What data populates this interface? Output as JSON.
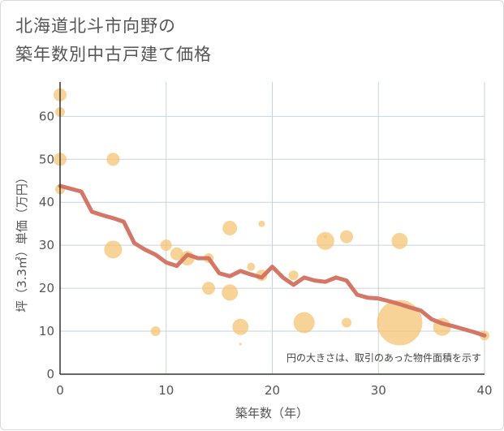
{
  "title_lines": [
    "北海道北斗市向野の",
    "築年数別中古戸建て価格"
  ],
  "chart_data": {
    "type": "scatter",
    "title": "北海道北斗市向野の築年数別中古戸建て価格",
    "xlabel": "築年数（年）",
    "ylabel": "坪（3.3㎡）単価（万円）",
    "xlim": [
      0,
      40
    ],
    "ylim": [
      0,
      68
    ],
    "xticks": [
      0,
      10,
      20,
      30,
      40
    ],
    "yticks": [
      0,
      10,
      20,
      30,
      40,
      50,
      60
    ],
    "grid": true,
    "annotation": "円の大きさは、取引のあった物件面積を示す",
    "bubble_color": "#f5c16c",
    "line_color": "#d2705f",
    "scatter_points": [
      {
        "x": 0,
        "y": 65,
        "size": 8
      },
      {
        "x": 0,
        "y": 61,
        "size": 6
      },
      {
        "x": 0,
        "y": 50,
        "size": 8
      },
      {
        "x": 0,
        "y": 43,
        "size": 6
      },
      {
        "x": 5,
        "y": 50,
        "size": 8
      },
      {
        "x": 5,
        "y": 29,
        "size": 11
      },
      {
        "x": 10,
        "y": 30,
        "size": 7
      },
      {
        "x": 11,
        "y": 28,
        "size": 8
      },
      {
        "x": 12,
        "y": 27,
        "size": 9
      },
      {
        "x": 9,
        "y": 10,
        "size": 6
      },
      {
        "x": 14,
        "y": 27,
        "size": 6
      },
      {
        "x": 14,
        "y": 20,
        "size": 8
      },
      {
        "x": 16,
        "y": 34,
        "size": 9
      },
      {
        "x": 16,
        "y": 19,
        "size": 10
      },
      {
        "x": 17,
        "y": 11,
        "size": 10
      },
      {
        "x": 17,
        "y": 7,
        "size": 1.5
      },
      {
        "x": 18,
        "y": 25,
        "size": 5
      },
      {
        "x": 19,
        "y": 35,
        "size": 4
      },
      {
        "x": 19,
        "y": 23,
        "size": 7
      },
      {
        "x": 22,
        "y": 23,
        "size": 6
      },
      {
        "x": 23,
        "y": 12,
        "size": 13
      },
      {
        "x": 25,
        "y": 31,
        "size": 11
      },
      {
        "x": 25,
        "y": 32,
        "size": 2
      },
      {
        "x": 27,
        "y": 32,
        "size": 8
      },
      {
        "x": 27,
        "y": 12,
        "size": 6
      },
      {
        "x": 32,
        "y": 31,
        "size": 10
      },
      {
        "x": 32,
        "y": 12,
        "size": 28
      },
      {
        "x": 36,
        "y": 11,
        "size": 11
      },
      {
        "x": 40,
        "y": 9,
        "size": 6
      }
    ],
    "trend_line": {
      "x": [
        0,
        2,
        3,
        4,
        5,
        6,
        7,
        8,
        9,
        10,
        11,
        12,
        13,
        14,
        15,
        16,
        17,
        18,
        19,
        20,
        21,
        22,
        23,
        24,
        25,
        26,
        27,
        28,
        29,
        30,
        31,
        32,
        33,
        34,
        35,
        36,
        37,
        38,
        39,
        40
      ],
      "y": [
        43.8,
        42.5,
        37.8,
        37.0,
        36.3,
        35.5,
        30.5,
        29.0,
        27.8,
        26.0,
        25.2,
        27.8,
        27.0,
        27.0,
        23.5,
        22.8,
        24.0,
        23.2,
        22.5,
        25.0,
        22.5,
        20.8,
        22.5,
        21.8,
        21.5,
        22.5,
        21.8,
        18.5,
        17.8,
        17.6,
        17.0,
        16.3,
        15.5,
        14.8,
        12.8,
        11.8,
        11.2,
        10.5,
        9.8,
        9.0
      ]
    }
  }
}
